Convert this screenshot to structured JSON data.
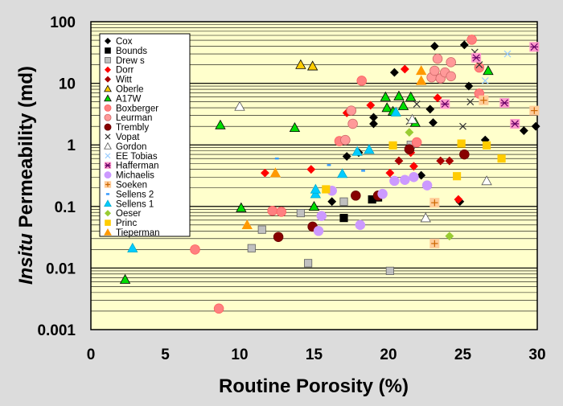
{
  "chart_data": {
    "type": "scatter",
    "title": "",
    "xlabel": "Routine Porosity (%)",
    "ylabel_italic": "Insitu",
    "ylabel_rest": " Permeability (md)",
    "x_scale": "linear",
    "y_scale": "log",
    "xlim": [
      0,
      30
    ],
    "ylim": [
      0.001,
      100
    ],
    "x_ticks": [
      "0",
      "5",
      "10",
      "15",
      "20",
      "25",
      "30"
    ],
    "y_ticks": [
      "0.001",
      "0.01",
      "0.1",
      "1",
      "10",
      "100"
    ],
    "grid": "horizontal minor log gridlines",
    "legend_position": "top-left",
    "colors": {
      "plot_bg": "#ffffcc",
      "frame_bg": "#dcdcdc",
      "grid": "#000000"
    },
    "series": [
      {
        "name": "Cox",
        "marker": "diamond",
        "fill": "#000000",
        "stroke": "#000000",
        "points": [
          [
            16.2,
            0.12
          ],
          [
            17.2,
            0.65
          ],
          [
            18.0,
            0.75
          ],
          [
            19.0,
            2.8
          ],
          [
            19.0,
            2.2
          ],
          [
            20.4,
            15.0
          ],
          [
            22.2,
            0.32
          ],
          [
            22.8,
            3.8
          ],
          [
            23.0,
            2.3
          ],
          [
            23.1,
            40
          ],
          [
            24.8,
            0.12
          ],
          [
            25.1,
            42
          ],
          [
            25.4,
            9.0
          ],
          [
            26.5,
            1.2
          ],
          [
            29.1,
            1.7
          ],
          [
            29.9,
            2.0
          ]
        ]
      },
      {
        "name": "Bounds",
        "marker": "square",
        "fill": "#000000",
        "stroke": "#000000",
        "points": [
          [
            17.0,
            0.065
          ],
          [
            18.9,
            0.13
          ],
          [
            19.3,
            0.14
          ]
        ]
      },
      {
        "name": "Drew s",
        "marker": "square",
        "fill": "#c0c0c0",
        "stroke": "#606060",
        "points": [
          [
            10.8,
            0.021
          ],
          [
            11.5,
            0.042
          ],
          [
            14.1,
            0.078
          ],
          [
            14.6,
            0.012
          ],
          [
            17.0,
            0.12
          ],
          [
            20.1,
            0.009
          ],
          [
            21.5,
            1.0
          ]
        ]
      },
      {
        "name": "Dorr",
        "marker": "diamond",
        "fill": "#ff0000",
        "stroke": "#ff0000",
        "points": [
          [
            11.7,
            0.35
          ],
          [
            14.8,
            0.4
          ],
          [
            17.2,
            3.3
          ],
          [
            18.8,
            4.4
          ],
          [
            20.1,
            0.35
          ],
          [
            21.1,
            17.0
          ],
          [
            21.5,
            0.75
          ],
          [
            21.7,
            0.45
          ],
          [
            23.3,
            5.8
          ],
          [
            24.7,
            0.13
          ]
        ]
      },
      {
        "name": "Witt",
        "marker": "diamond",
        "fill": "#aa0000",
        "stroke": "#aa0000",
        "points": [
          [
            20.7,
            0.55
          ],
          [
            23.5,
            0.55
          ],
          [
            24.1,
            0.55
          ]
        ]
      },
      {
        "name": "Oberle",
        "marker": "triangle",
        "fill": "#ffcc00",
        "stroke": "#000000",
        "points": [
          [
            14.1,
            20.0
          ],
          [
            14.9,
            19.0
          ]
        ]
      },
      {
        "name": "A17W",
        "marker": "triangle",
        "fill": "#00dd00",
        "stroke": "#000000",
        "points": [
          [
            2.3,
            0.0065
          ],
          [
            8.7,
            2.1
          ],
          [
            10.1,
            0.095
          ],
          [
            13.7,
            1.9
          ],
          [
            15.0,
            0.1
          ],
          [
            19.8,
            6.0
          ],
          [
            19.9,
            4.0
          ],
          [
            20.3,
            3.5
          ],
          [
            20.7,
            6.2
          ],
          [
            21.0,
            4.3
          ],
          [
            21.5,
            6.0
          ],
          [
            21.8,
            2.3
          ],
          [
            26.7,
            16.0
          ]
        ]
      },
      {
        "name": "Boxberger",
        "marker": "circle",
        "fill": "#ff8080",
        "stroke": "#ff6060",
        "points": [
          [
            7.0,
            0.02
          ],
          [
            8.6,
            0.0022
          ],
          [
            12.2,
            0.085
          ],
          [
            12.8,
            0.082
          ],
          [
            16.7,
            1.15
          ],
          [
            18.2,
            11.0
          ],
          [
            21.9,
            1.1
          ],
          [
            25.6,
            51.0
          ],
          [
            26.1,
            18.0
          ],
          [
            26.1,
            6.8
          ]
        ]
      },
      {
        "name": "Leurman",
        "marker": "circle",
        "fill": "#ff9999",
        "stroke": "#cc6666",
        "points": [
          [
            17.5,
            3.6
          ],
          [
            17.6,
            2.2
          ],
          [
            17.1,
            1.2
          ],
          [
            22.9,
            12.5
          ],
          [
            23.3,
            25.0
          ],
          [
            23.1,
            16.0
          ],
          [
            23.5,
            12.0
          ],
          [
            23.8,
            15.0
          ],
          [
            24.2,
            22.0
          ],
          [
            24.2,
            13.0
          ]
        ]
      },
      {
        "name": "Trembly",
        "marker": "circle",
        "fill": "#880000",
        "stroke": "#660000",
        "points": [
          [
            12.6,
            0.032
          ],
          [
            14.9,
            0.047
          ],
          [
            17.8,
            0.15
          ],
          [
            19.3,
            0.15
          ],
          [
            25.1,
            0.7
          ],
          [
            21.4,
            0.85
          ]
        ]
      },
      {
        "name": "Vopat",
        "marker": "x",
        "fill": "none",
        "stroke": "#333333",
        "points": [
          [
            21.4,
            2.4
          ],
          [
            21.9,
            4.6
          ],
          [
            25.0,
            2.0
          ],
          [
            25.8,
            32.0
          ],
          [
            25.5,
            5.0
          ],
          [
            26.1,
            20.0
          ]
        ]
      },
      {
        "name": "Gordon",
        "marker": "triangle",
        "fill": "#ffffff",
        "stroke": "#555555",
        "points": [
          [
            10.0,
            4.2
          ],
          [
            21.6,
            2.6
          ],
          [
            22.5,
            0.065
          ],
          [
            26.6,
            0.26
          ]
        ]
      },
      {
        "name": "EE Tobias",
        "marker": "x",
        "fill": "none",
        "stroke": "#99ccff",
        "points": [
          [
            26.5,
            11.0
          ],
          [
            28.0,
            30.0
          ]
        ]
      },
      {
        "name": "Hafferman",
        "marker": "asterisk-box",
        "fill": "#ff99cc",
        "stroke": "#660066",
        "points": [
          [
            23.8,
            4.6
          ],
          [
            25.9,
            26.0
          ],
          [
            27.8,
            4.8
          ],
          [
            28.5,
            2.2
          ],
          [
            29.8,
            39.0
          ]
        ]
      },
      {
        "name": "Michaelis",
        "marker": "circle",
        "fill": "#cc99ff",
        "stroke": "#cc99ff",
        "points": [
          [
            15.5,
            0.07
          ],
          [
            15.3,
            0.04
          ],
          [
            16.2,
            0.18
          ],
          [
            18.1,
            0.05
          ],
          [
            19.6,
            0.16
          ],
          [
            20.4,
            0.26
          ],
          [
            21.1,
            0.27
          ],
          [
            22.6,
            0.22
          ],
          [
            21.7,
            0.3
          ]
        ]
      },
      {
        "name": "Soeken",
        "marker": "plus-box",
        "fill": "#ffcc99",
        "stroke": "#cc6600",
        "points": [
          [
            23.1,
            0.115
          ],
          [
            23.1,
            0.025
          ],
          [
            26.4,
            5.3
          ],
          [
            29.8,
            3.6
          ]
        ]
      },
      {
        "name": "Sellens 2",
        "marker": "dash",
        "fill": "#3399ff",
        "stroke": "#3399ff",
        "points": [
          [
            12.5,
            0.6
          ],
          [
            16.0,
            0.47
          ],
          [
            18.3,
            0.38
          ]
        ]
      },
      {
        "name": "Sellens 1",
        "marker": "triangle",
        "fill": "#00ccff",
        "stroke": "#00aacc",
        "points": [
          [
            2.8,
            0.021
          ],
          [
            15.1,
            0.16
          ],
          [
            15.1,
            0.19
          ],
          [
            16.9,
            0.34
          ],
          [
            18.7,
            0.84
          ],
          [
            17.9,
            0.78
          ],
          [
            20.5,
            3.4
          ]
        ]
      },
      {
        "name": "Oeser",
        "marker": "diamond",
        "fill": "#99cc33",
        "stroke": "#99cc33",
        "points": [
          [
            21.4,
            1.6
          ],
          [
            24.1,
            0.033
          ]
        ]
      },
      {
        "name": "Princ",
        "marker": "square",
        "fill": "#ffcc00",
        "stroke": "#ffcc00",
        "points": [
          [
            15.8,
            0.19
          ],
          [
            20.3,
            0.98
          ],
          [
            24.6,
            0.31
          ],
          [
            24.9,
            1.05
          ],
          [
            26.6,
            0.98
          ],
          [
            27.6,
            0.6
          ]
        ]
      },
      {
        "name": "Tieperman",
        "marker": "triangle",
        "fill": "#ff9900",
        "stroke": "#ff9900",
        "points": [
          [
            10.5,
            0.05
          ],
          [
            12.4,
            0.35
          ],
          [
            22.2,
            16.0
          ],
          [
            22.2,
            11.0
          ]
        ]
      }
    ]
  }
}
